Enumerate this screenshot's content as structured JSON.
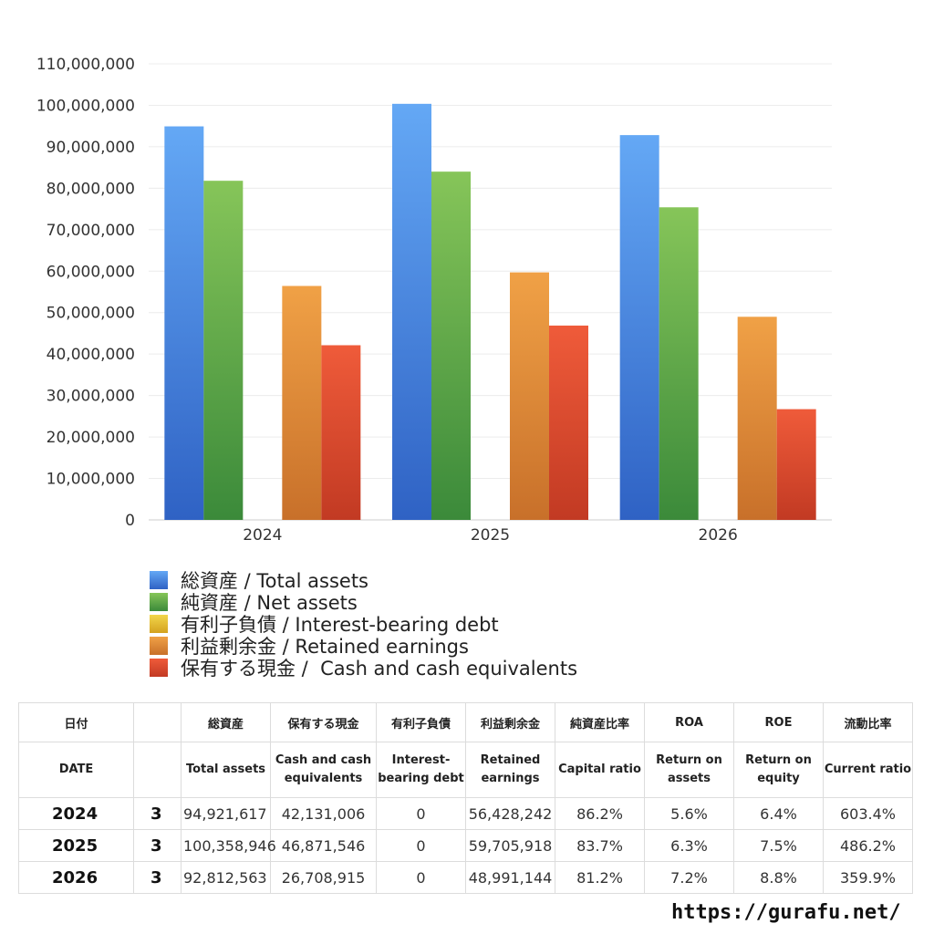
{
  "chart_data": {
    "type": "bar",
    "categories": [
      "2024",
      "2025",
      "2026"
    ],
    "series": [
      {
        "name": "総資産 / Total assets",
        "values": [
          94921617,
          100358946,
          92812563
        ],
        "color_top": "#64a8f5",
        "color_bottom": "#2f62c4"
      },
      {
        "name": "純資産 / Net assets",
        "values": [
          81800000,
          84000000,
          75400000
        ],
        "color_top": "#86c559",
        "color_bottom": "#3b8a3a"
      },
      {
        "name": "有利子負債 / Interest-bearing debt",
        "values": [
          0,
          0,
          0
        ],
        "color_top": "#f2d64b",
        "color_bottom": "#d4a21f"
      },
      {
        "name": "利益剰余金 / Retained earnings",
        "values": [
          56428242,
          59705918,
          48991144
        ],
        "color_top": "#f0a146",
        "color_bottom": "#c8702a"
      },
      {
        "name": "保有する現金 /  Cash and cash equivalents",
        "values": [
          42131006,
          46871546,
          26708915
        ],
        "color_top": "#ef5b3a",
        "color_bottom": "#c23a23"
      }
    ],
    "ylim": [
      0,
      110000000
    ],
    "yticks": [
      "0",
      "10,000,000",
      "20,000,000",
      "30,000,000",
      "40,000,000",
      "50,000,000",
      "60,000,000",
      "70,000,000",
      "80,000,000",
      "90,000,000",
      "100,000,000",
      "110,000,000"
    ],
    "grid": true,
    "legend_position": "bottom"
  },
  "table": {
    "headers_jp": [
      "日付",
      "",
      "総資産",
      "保有する現金",
      "有利子負債",
      "利益剰余金",
      "純資産比率",
      "ROA",
      "ROE",
      "流動比率"
    ],
    "headers_en": [
      "DATE",
      "",
      "Total assets",
      "Cash and cash equivalents",
      "Interest-bearing debt",
      "Retained earnings",
      "Capital ratio",
      "Return on assets",
      "Return on equity",
      "Current ratio"
    ],
    "rows": [
      [
        "2024",
        "3",
        "94,921,617",
        "42,131,006",
        "0",
        "56,428,242",
        "86.2%",
        "5.6%",
        "6.4%",
        "603.4%"
      ],
      [
        "2025",
        "3",
        "100,358,946",
        "46,871,546",
        "0",
        "59,705,918",
        "83.7%",
        "6.3%",
        "7.5%",
        "486.2%"
      ],
      [
        "2026",
        "3",
        "92,812,563",
        "26,708,915",
        "0",
        "48,991,144",
        "81.2%",
        "7.2%",
        "8.8%",
        "359.9%"
      ]
    ]
  },
  "footer": {
    "url": "https://gurafu.net/"
  }
}
